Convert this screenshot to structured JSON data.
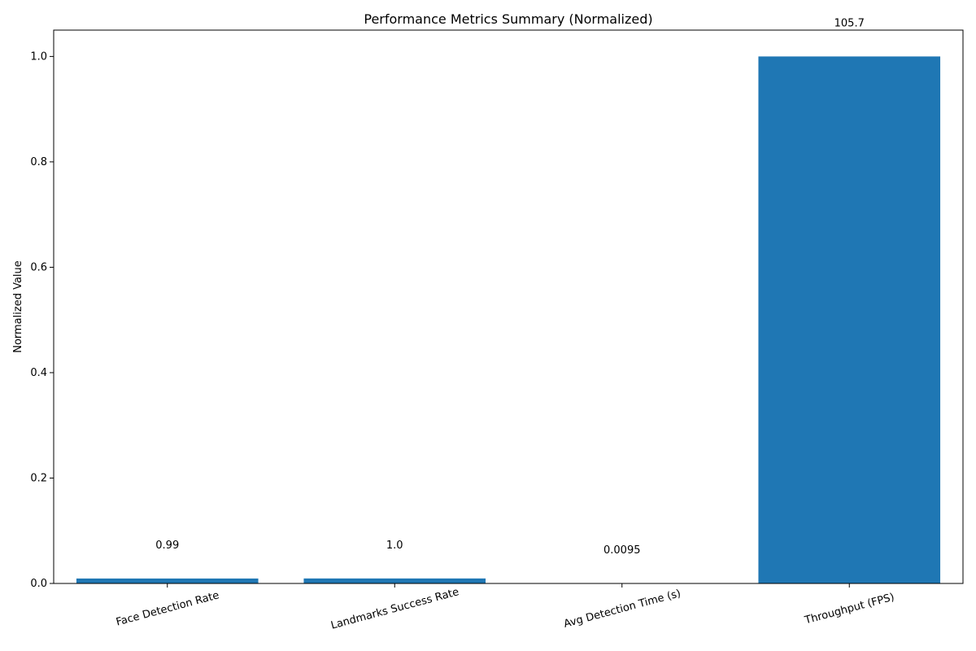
{
  "chart_data": {
    "type": "bar",
    "title": "Performance Metrics Summary (Normalized)",
    "xlabel": "",
    "ylabel": "Normalized Value",
    "categories": [
      "Face Detection Rate",
      "Landmarks Success Rate",
      "Avg Detection Time (s)",
      "Throughput (FPS)"
    ],
    "values": [
      0.0094,
      0.0095,
      9e-05,
      1.0
    ],
    "data_labels": [
      "0.99",
      "1.0",
      "0.0095",
      "105.7"
    ],
    "ylim": [
      0,
      1.05
    ],
    "yticks": [
      "0.0",
      "0.2",
      "0.4",
      "0.6",
      "0.8",
      "1.0"
    ],
    "grid": false,
    "bar_color": "#1f77b4"
  }
}
